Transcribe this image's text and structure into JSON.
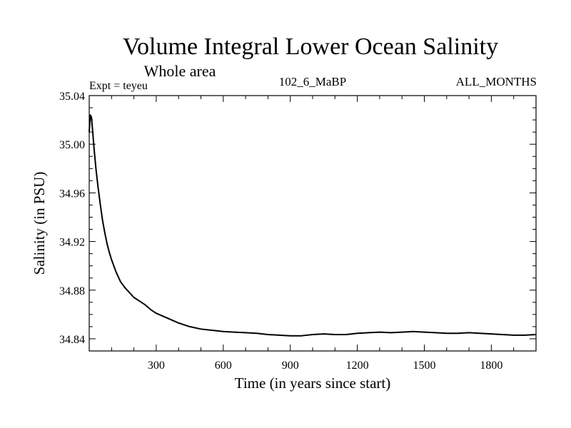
{
  "chart_data": {
    "type": "line",
    "title": "Volume Integral Lower Ocean Salinity",
    "subtitle": "Whole area",
    "left_label": "Expt = teyeu",
    "center_label": "102_6_MaBP",
    "right_label": "ALL_MONTHS",
    "xlabel": "Time (in years since start)",
    "ylabel": "Salinity (in PSU)",
    "xlim": [
      0,
      2000
    ],
    "ylim": [
      34.83,
      35.04
    ],
    "xticks": [
      300,
      600,
      900,
      1200,
      1500,
      1800
    ],
    "xtick_labels": [
      "300",
      "600",
      "900",
      "1200",
      "1500",
      "1800"
    ],
    "yticks": [
      34.84,
      34.88,
      34.92,
      34.96,
      35.0,
      35.04
    ],
    "ytick_labels": [
      "34.84",
      "34.88",
      "34.92",
      "34.96",
      "35.00",
      "35.04"
    ],
    "grid": false,
    "series": [
      {
        "name": "salinity",
        "color": "#000000",
        "x": [
          0,
          5,
          10,
          15,
          20,
          25,
          30,
          40,
          50,
          60,
          70,
          80,
          90,
          100,
          120,
          140,
          160,
          180,
          200,
          225,
          250,
          275,
          300,
          350,
          400,
          450,
          500,
          550,
          600,
          650,
          700,
          750,
          800,
          850,
          900,
          950,
          1000,
          1050,
          1100,
          1150,
          1200,
          1250,
          1300,
          1350,
          1400,
          1450,
          1500,
          1550,
          1600,
          1650,
          1700,
          1750,
          1800,
          1850,
          1900,
          1950,
          2000
        ],
        "y": [
          35.01,
          35.024,
          35.022,
          35.012,
          35.0,
          34.99,
          34.98,
          34.964,
          34.95,
          34.937,
          34.927,
          34.918,
          34.911,
          34.905,
          34.895,
          34.887,
          34.882,
          34.878,
          34.874,
          34.871,
          34.868,
          34.864,
          34.861,
          34.857,
          34.853,
          34.85,
          34.848,
          34.847,
          34.846,
          34.8455,
          34.845,
          34.8445,
          34.8435,
          34.843,
          34.8425,
          34.8425,
          34.8435,
          34.844,
          34.8435,
          34.8435,
          34.8445,
          34.845,
          34.8455,
          34.845,
          34.8455,
          34.846,
          34.8455,
          34.845,
          34.8445,
          34.8445,
          34.845,
          34.8445,
          34.844,
          34.8435,
          34.843,
          34.843,
          34.8435
        ]
      }
    ]
  }
}
